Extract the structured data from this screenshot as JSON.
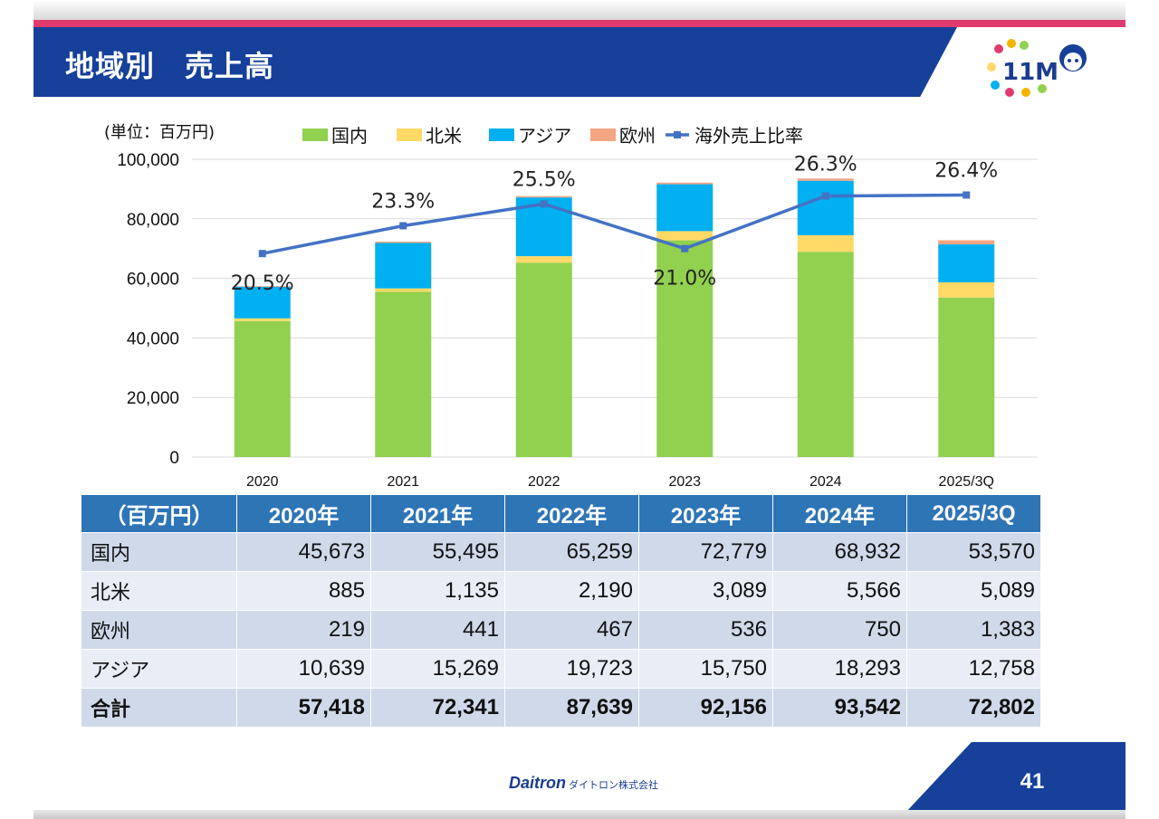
{
  "page": {
    "title": "地域別　売上高",
    "page_number": "41"
  },
  "logo": {
    "text": "11M"
  },
  "footer": {
    "brand": "Daitron",
    "brand_sub": "ダイトロン株式会社"
  },
  "colors": {
    "domestic": "#92d050",
    "north_america": "#ffd966",
    "asia": "#00b0f0",
    "europe": "#f4a582",
    "ratio_line": "#4472c4",
    "header_blue": "#2e75b6",
    "title_bar": "#16409a",
    "accent_pink": "#e03a6f"
  },
  "chart_data": {
    "type": "bar",
    "stacked": true,
    "unit_label": "(単位：百万円)",
    "categories": [
      "2020",
      "2021",
      "2022",
      "2023",
      "2024",
      "2025/3Q"
    ],
    "ylim": [
      0,
      100000
    ],
    "yticks": [
      "0",
      "20,000",
      "40,000",
      "60,000",
      "80,000",
      "100,000"
    ],
    "grid": true,
    "legend_position": "top",
    "series": [
      {
        "name": "国内",
        "values": [
          45673,
          55495,
          65259,
          72779,
          68932,
          53570
        ]
      },
      {
        "name": "北米",
        "values": [
          885,
          1135,
          2190,
          3089,
          5566,
          5089
        ]
      },
      {
        "name": "アジア",
        "values": [
          10639,
          15269,
          19723,
          15750,
          18293,
          12758
        ]
      },
      {
        "name": "欧州",
        "values": [
          219,
          441,
          467,
          536,
          750,
          1383
        ]
      }
    ],
    "line_series": {
      "name": "海外売上比率",
      "values": [
        20.5,
        23.3,
        25.5,
        21.0,
        26.3,
        26.4
      ],
      "labels": [
        "20.5%",
        "23.3%",
        "25.5%",
        "21.0%",
        "26.3%",
        "26.4%"
      ],
      "axis_range": [
        0,
        30
      ]
    }
  },
  "table": {
    "corner": "（百万円）",
    "headers": [
      "2020年",
      "2021年",
      "2022年",
      "2023年",
      "2024年",
      "2025/3Q"
    ],
    "rows": [
      {
        "label": "国内",
        "values": [
          "45,673",
          "55,495",
          "65,259",
          "72,779",
          "68,932",
          "53,570"
        ]
      },
      {
        "label": "北米",
        "values": [
          "885",
          "1,135",
          "2,190",
          "3,089",
          "5,566",
          "5,089"
        ]
      },
      {
        "label": "欧州",
        "values": [
          "219",
          "441",
          "467",
          "536",
          "750",
          "1,383"
        ]
      },
      {
        "label": "アジア",
        "values": [
          "10,639",
          "15,269",
          "19,723",
          "15,750",
          "18,293",
          "12,758"
        ]
      }
    ],
    "total": {
      "label": "合計",
      "values": [
        "57,418",
        "72,341",
        "87,639",
        "92,156",
        "93,542",
        "72,802"
      ]
    }
  }
}
